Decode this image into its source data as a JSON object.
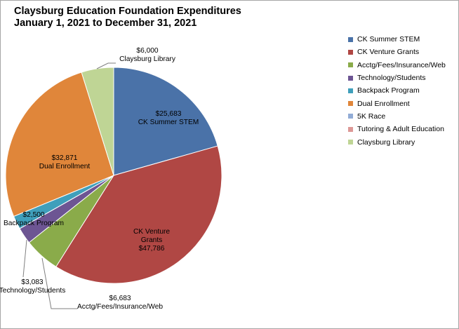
{
  "chart_data": {
    "type": "pie",
    "title": "Claysburg Education Foundation Expenditures",
    "subtitle": "January 1, 2021 to December 31, 2021",
    "categories": [
      "CK Summer STEM",
      "CK Venture Grants",
      "Acctg/Fees/Insurance/Web",
      "Technology/Students",
      "Backpack Program",
      "Dual Enrollment",
      "5K Race",
      "Tutoring & Adult Education",
      "Claysburg Library"
    ],
    "values": [
      25683,
      47786,
      6683,
      3083,
      2500,
      32871,
      0,
      0,
      6000
    ],
    "value_labels": [
      "$25,683",
      "$47,786",
      "$6,683",
      "$3,083",
      "$2,500",
      "$32,871",
      "",
      "",
      "$6,000"
    ],
    "colors": [
      "#4a72a8",
      "#b04744",
      "#8aab4a",
      "#6d5593",
      "#3f9fbb",
      "#e0863a",
      "#92acd6",
      "#dd9896",
      "#bfd595"
    ],
    "legend_position": "right"
  }
}
